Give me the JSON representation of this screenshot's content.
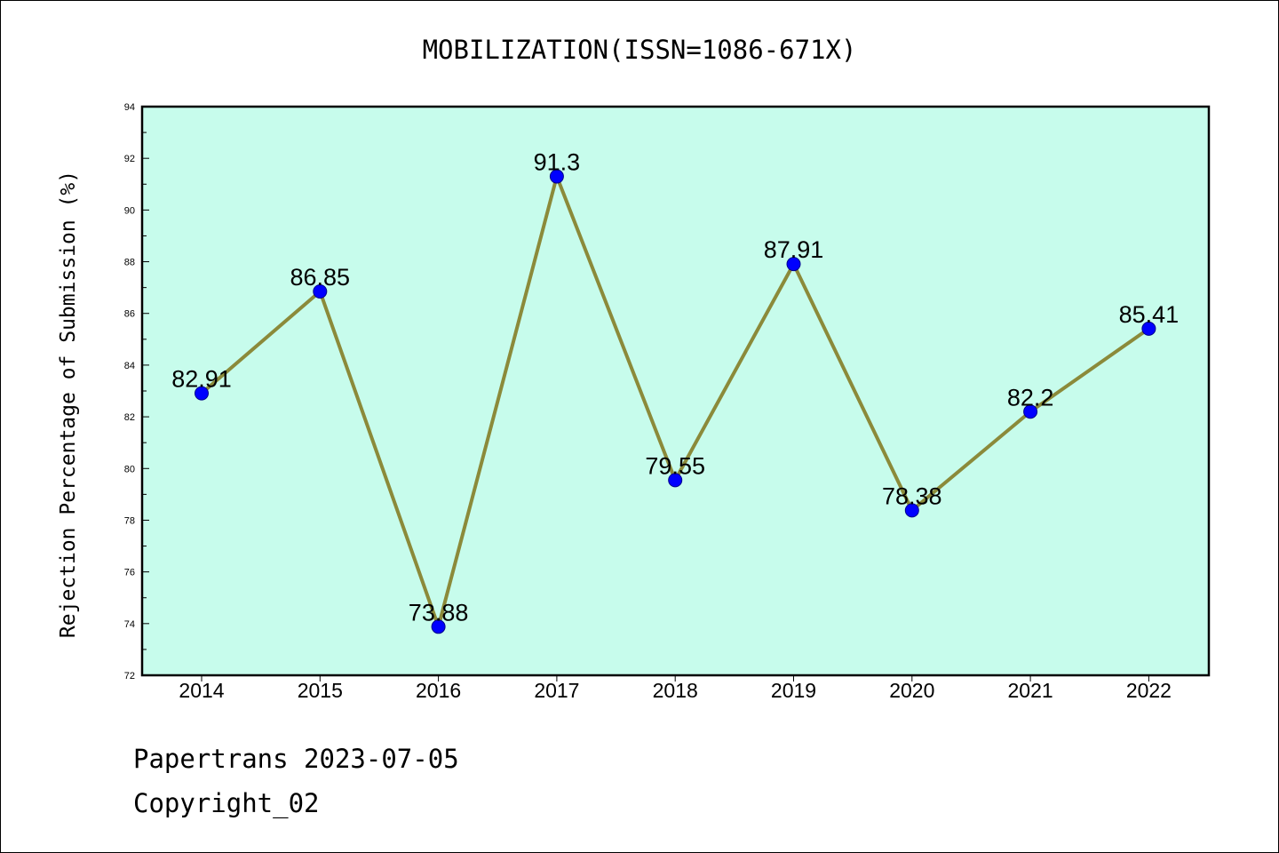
{
  "chart_data": {
    "type": "line",
    "title": "MOBILIZATION(ISSN=1086-671X)",
    "ylabel": "Rejection Percentage of Submission (%)",
    "xlabel": "",
    "categories": [
      "2014",
      "2015",
      "2016",
      "2017",
      "2018",
      "2019",
      "2020",
      "2021",
      "2022"
    ],
    "values": [
      82.91,
      86.85,
      73.88,
      91.3,
      79.55,
      87.91,
      78.38,
      82.2,
      85.41
    ],
    "data_labels": [
      "82.91",
      "86.85",
      "73.88",
      "91.3",
      "79.55",
      "87.91",
      "78.38",
      "82.2",
      "85.41"
    ],
    "ylim": [
      72,
      94
    ],
    "yticks": [
      72,
      74,
      76,
      78,
      80,
      82,
      84,
      86,
      88,
      90,
      92,
      94
    ],
    "grid": false,
    "legend": "none",
    "colors": {
      "plot_background": "#c7fcec",
      "line": "#8b8a3a",
      "marker": "#0000ff"
    }
  },
  "footer": {
    "line1": "Papertrans 2023-07-05",
    "line2": "Copyright_02"
  }
}
